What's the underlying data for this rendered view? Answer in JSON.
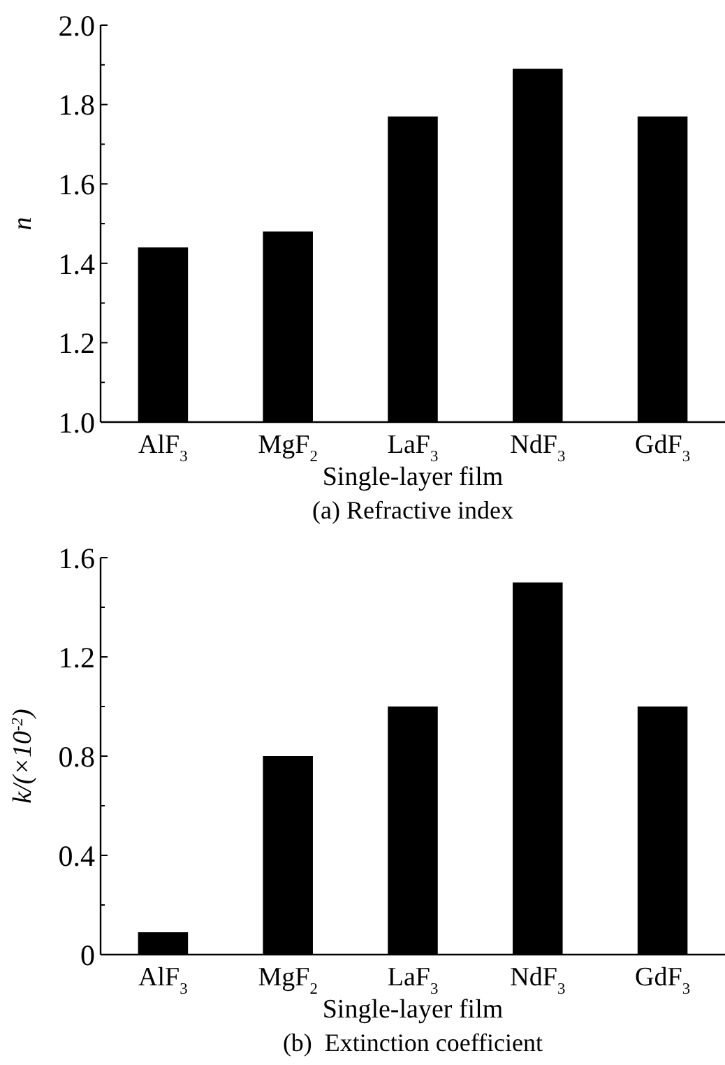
{
  "chart_data": [
    {
      "type": "bar",
      "title": "(a) Refractive index",
      "xlabel": "Single-layer film",
      "ylabel": "n",
      "categories": [
        "AlF$_{3}$",
        "MgF$_{2}$",
        "LaF$_{3}$",
        "NdF$_{3}$",
        "GdF$_{3}$"
      ],
      "values": [
        1.44,
        1.48,
        1.77,
        1.89,
        1.77
      ],
      "color": "#000000",
      "ylim": [
        1.0,
        2.0
      ],
      "yticks": [
        {
          "value": 1.0,
          "label": "1.0"
        },
        {
          "value": 1.1,
          "label": null
        },
        1.2,
        {
          "value": 1.3,
          "label": null
        },
        1.4,
        {
          "value": 1.5,
          "label": null
        },
        1.6,
        {
          "value": 1.7,
          "label": null
        },
        1.8,
        {
          "value": 1.9,
          "label": null
        },
        {
          "value": 2.0,
          "label": "2.0"
        }
      ]
    },
    {
      "type": "bar",
      "title": "(b)  Extinction coefficient",
      "xlabel": "Single-layer film",
      "ylabel": "k/(×10$^{-2}$)",
      "categories": [
        "AlF$_{3}$",
        "MgF$_{2}$",
        "LaF$_{3}$",
        "NdF$_{3}$",
        "GdF$_{3}$"
      ],
      "values": [
        0.09,
        0.8,
        1.0,
        1.5,
        1.0
      ],
      "color": "#000000",
      "ylim": [
        0,
        1.6
      ],
      "yticks": [
        0,
        {
          "value": 0.2,
          "label": null
        },
        0.4,
        {
          "value": 0.6,
          "label": null
        },
        0.8,
        {
          "value": 1.0,
          "label": null
        },
        1.2,
        {
          "value": 1.4,
          "label": null
        },
        1.6
      ]
    }
  ]
}
